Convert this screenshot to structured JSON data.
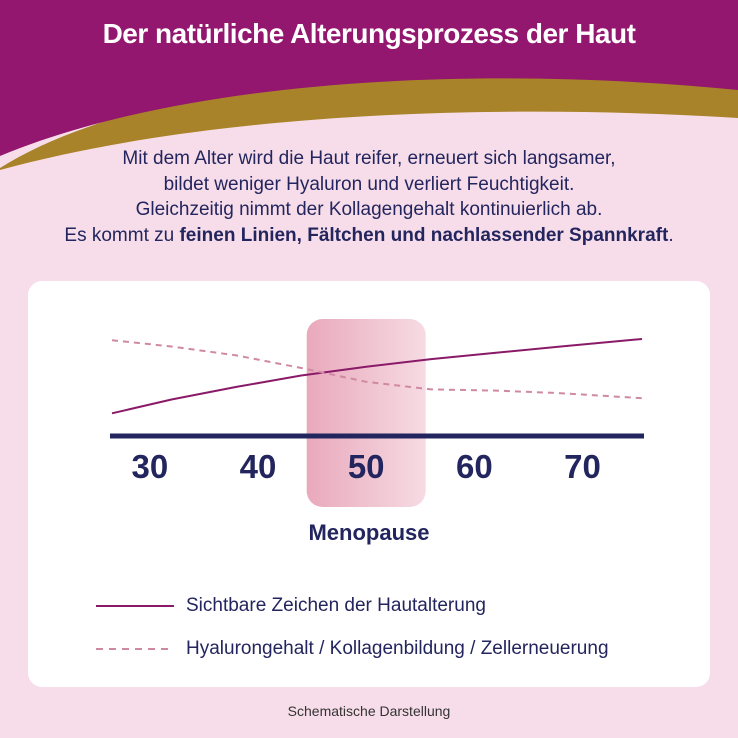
{
  "header": {
    "title": "Der natürliche Alterungsprozess der Haut",
    "colors": {
      "purple": "#93166f",
      "gold": "#a8832a"
    }
  },
  "intro": {
    "line1": "Mit dem Alter wird die Haut reifer, erneuert sich langsamer,",
    "line2": "bildet weniger Hyaluron und verliert Feuchtigkeit.",
    "line3": "Gleichzeitig nimmt der Kollagengehalt kontinuierlich ab.",
    "line4_prefix": "Es kommt zu ",
    "line4_bold": "feinen Linien, Fältchen und nachlassender Spannkraft",
    "line4_suffix": "."
  },
  "chart_data": {
    "type": "line",
    "x_ticks": [
      "30",
      "40",
      "50",
      "60",
      "70"
    ],
    "highlight": {
      "from": 44.5,
      "to": 55.5,
      "label": "Menopause",
      "color": "#e9a9bc"
    },
    "xlim": [
      26.5,
      75.5
    ],
    "ylim": [
      0,
      1
    ],
    "series": [
      {
        "name": "Sichtbare Zeichen der Hautalterung",
        "style": "solid",
        "color": "#8a1a68",
        "points": [
          [
            26.5,
            0.18
          ],
          [
            32,
            0.29
          ],
          [
            38,
            0.39
          ],
          [
            44,
            0.48
          ],
          [
            50,
            0.55
          ],
          [
            56,
            0.61
          ],
          [
            62,
            0.66
          ],
          [
            68,
            0.71
          ],
          [
            75.5,
            0.77
          ]
        ]
      },
      {
        "name": "Hyalurongehalt / Kollagenbildung / Zellerneuerung",
        "style": "dashed",
        "color": "#d089a3",
        "points": [
          [
            26.5,
            0.76
          ],
          [
            32,
            0.71
          ],
          [
            38,
            0.64
          ],
          [
            44,
            0.54
          ],
          [
            50,
            0.43
          ],
          [
            56,
            0.37
          ],
          [
            62,
            0.36
          ],
          [
            68,
            0.34
          ],
          [
            75.5,
            0.3
          ]
        ]
      }
    ],
    "axis_color": "#23255e"
  },
  "legend": {
    "solid_label": "Sichtbare Zeichen der Hautalterung",
    "dashed_label": "Hyalurongehalt / Kollagenbildung / Zellerneuerung"
  },
  "footnote": "Schematische Darstellung"
}
